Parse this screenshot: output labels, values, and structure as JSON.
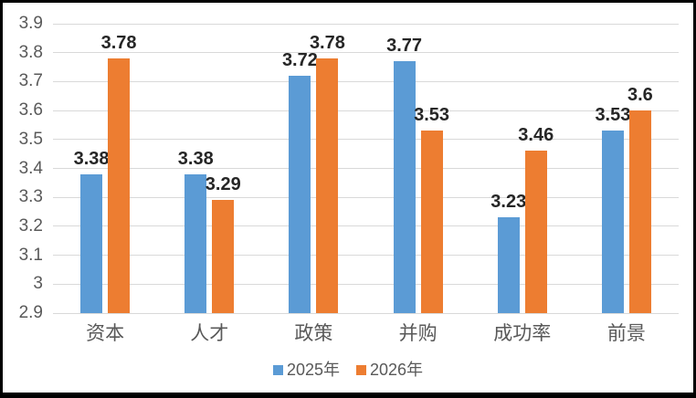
{
  "chart_data": {
    "type": "bar",
    "title": "",
    "xlabel": "",
    "ylabel": "",
    "categories": [
      "资本",
      "人才",
      "政策",
      "并购",
      "成功率",
      "前景"
    ],
    "series": [
      {
        "name": "2025年",
        "color": "#5B9BD5",
        "values": [
          3.38,
          3.38,
          3.72,
          3.77,
          3.23,
          3.53
        ],
        "labels": [
          "3.38",
          "3.38",
          "3.72",
          "3.77",
          "3.23",
          "3.53"
        ]
      },
      {
        "name": "2026年",
        "color": "#ED7D31",
        "values": [
          3.78,
          3.29,
          3.78,
          3.53,
          3.46,
          3.6
        ],
        "labels": [
          "3.78",
          "3.29",
          "3.78",
          "3.53",
          "3.46",
          "3.6"
        ]
      }
    ],
    "ylim": [
      2.9,
      3.9
    ],
    "yticks": [
      "2.9",
      "3",
      "3.1",
      "3.2",
      "3.3",
      "3.4",
      "3.5",
      "3.6",
      "3.7",
      "3.8",
      "3.9"
    ],
    "grid": true,
    "legend_position": "bottom",
    "colors": {
      "gridline": "#d9d9d9",
      "tick_text": "#595959",
      "data_label_text": "#262626",
      "frame_border": "#000000"
    }
  }
}
